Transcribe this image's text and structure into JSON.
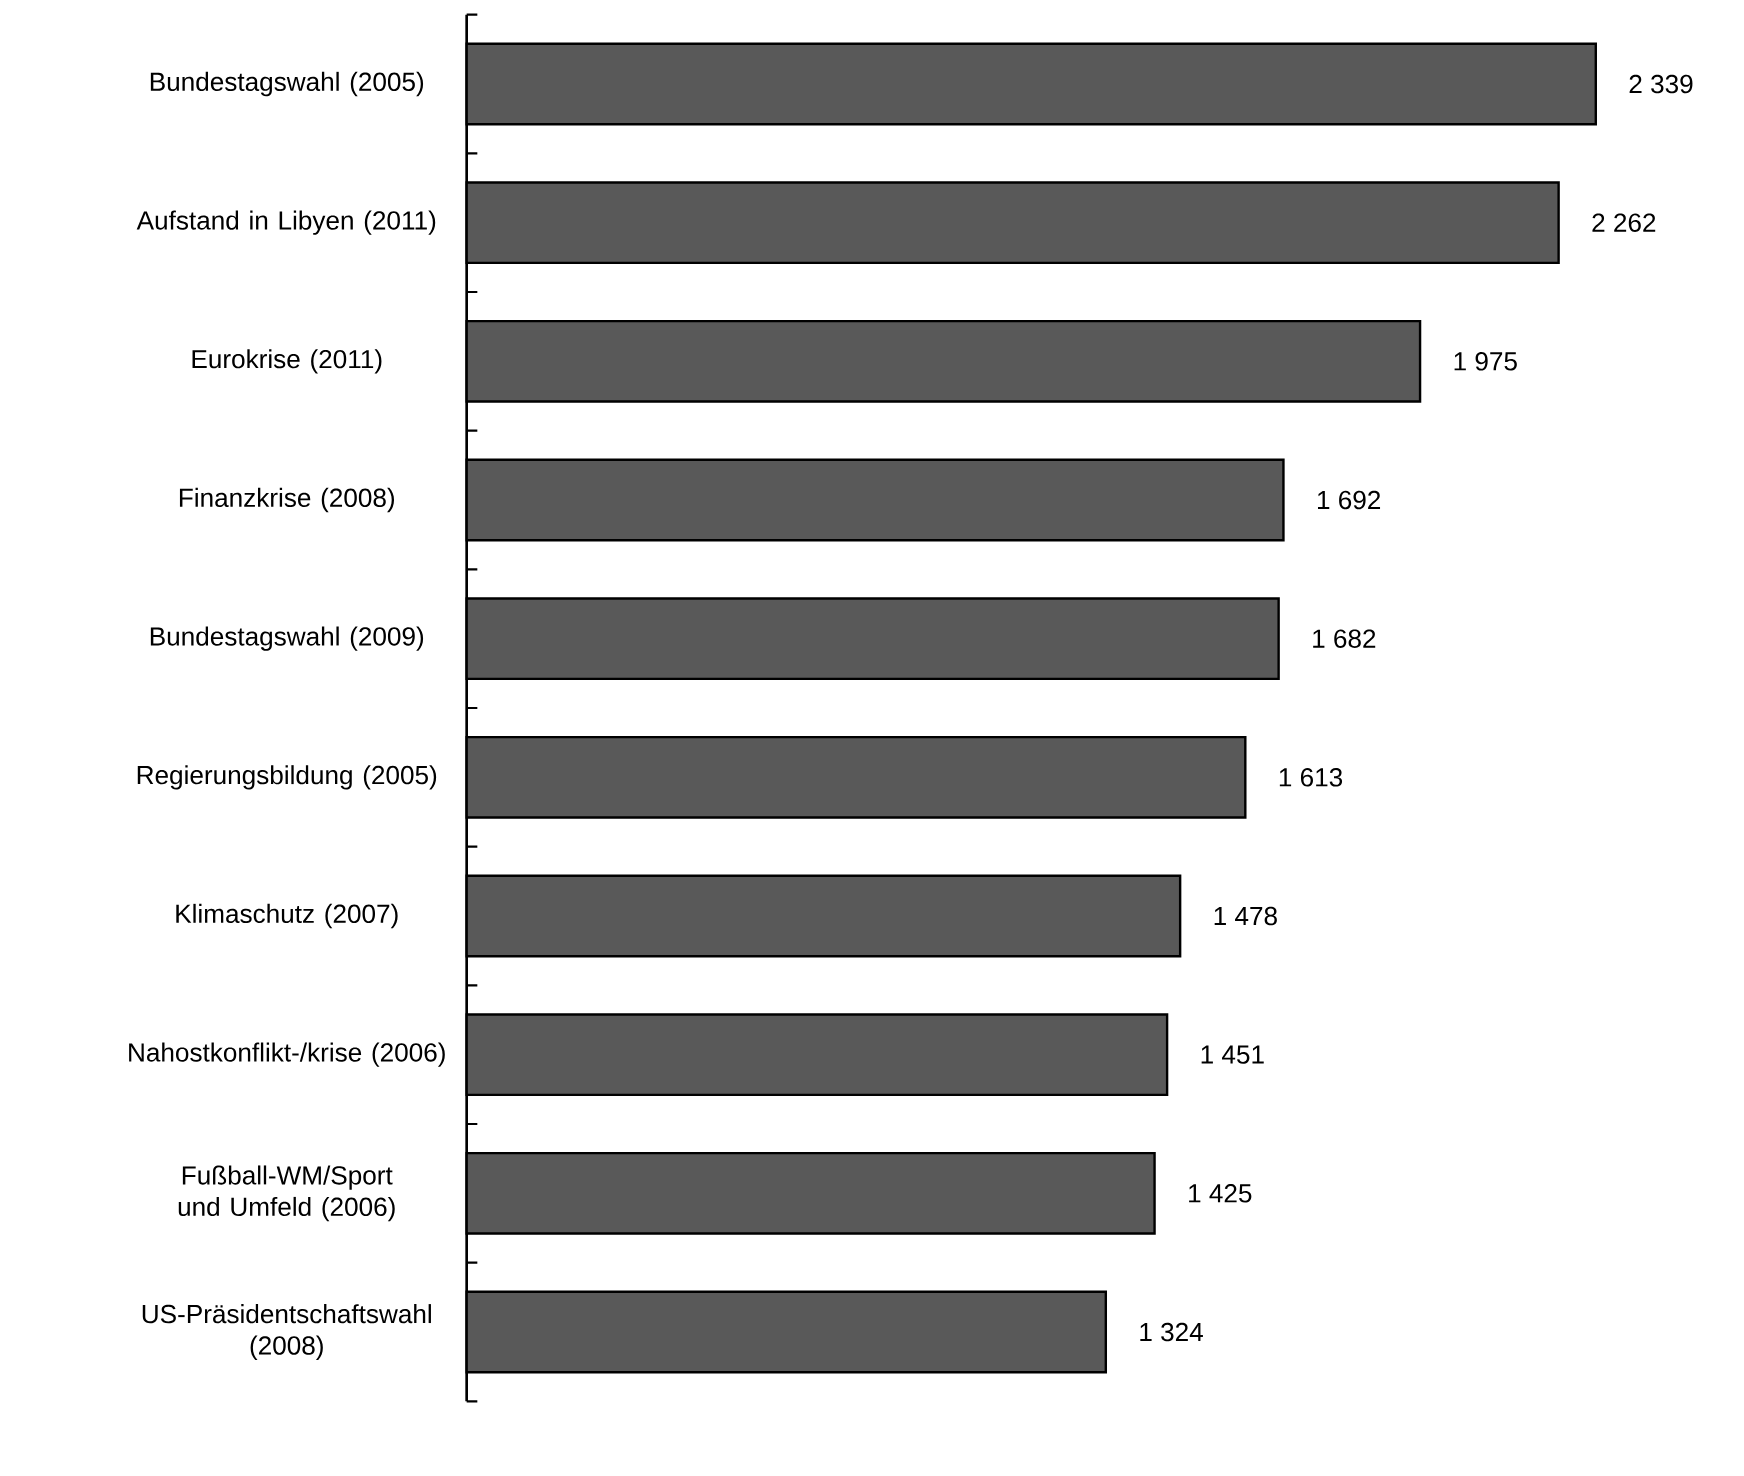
{
  "chart_data": {
    "type": "bar",
    "orientation": "horizontal",
    "categories": [
      "Bundestagswahl (2005)",
      "Aufstand in Libyen (2011)",
      "Eurokrise (2011)",
      "Finanzkrise (2008)",
      "Bundestagswahl (2009)",
      "Regierungsbildung (2005)",
      "Klimaschutz (2007)",
      "Nahostkonflikt-/krise (2006)",
      "Fußball-WM/Sport und Umfeld (2006)",
      "US-Präsidentschaftswahl (2008)"
    ],
    "values": [
      2339,
      2262,
      1975,
      1692,
      1682,
      1613,
      1478,
      1451,
      1425,
      1324
    ],
    "value_labels": [
      "2 339",
      "2 262",
      "1 975",
      "1 692",
      "1 682",
      "1 613",
      "1 478",
      "1 451",
      "1 425",
      "1 324"
    ],
    "color": "#595959"
  }
}
